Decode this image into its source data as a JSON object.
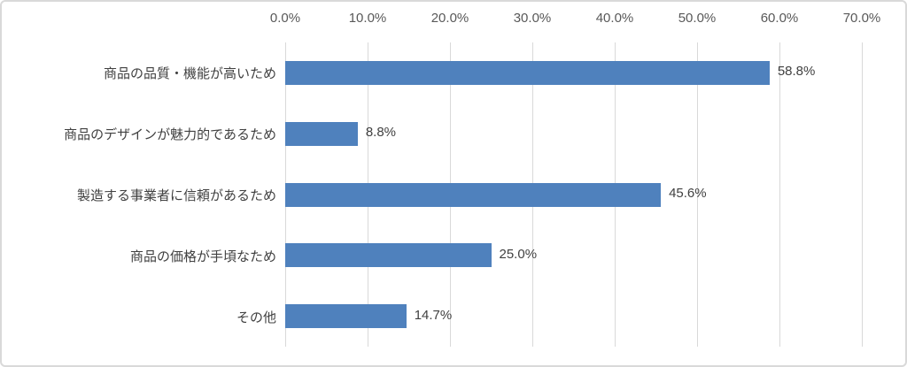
{
  "chart_data": {
    "type": "bar",
    "orientation": "horizontal",
    "title": "",
    "xlabel": "",
    "ylabel": "",
    "legend": "none",
    "grid": "vertical",
    "axis_position": "top",
    "xlim": [
      0,
      70
    ],
    "x_ticks": [
      "0.0%",
      "10.0%",
      "20.0%",
      "30.0%",
      "40.0%",
      "50.0%",
      "60.0%",
      "70.0%"
    ],
    "x_tick_values": [
      0,
      10,
      20,
      30,
      40,
      50,
      60,
      70
    ],
    "categories": [
      "商品の品質・機能が高いため",
      "商品のデザインが魅力的であるため",
      "製造する事業者に信頼があるため",
      "商品の価格が手頃なため",
      "その他"
    ],
    "values": [
      58.8,
      8.8,
      45.6,
      25.0,
      14.7
    ],
    "value_labels": [
      "58.8%",
      "8.8%",
      "45.6%",
      "25.0%",
      "14.7%"
    ],
    "colors": {
      "bar": "#4f81bd",
      "gridline": "#d9d9d9",
      "tick_text": "#595959",
      "label_text": "#404040",
      "border": "#d9d9d9",
      "background": "#ffffff"
    }
  }
}
